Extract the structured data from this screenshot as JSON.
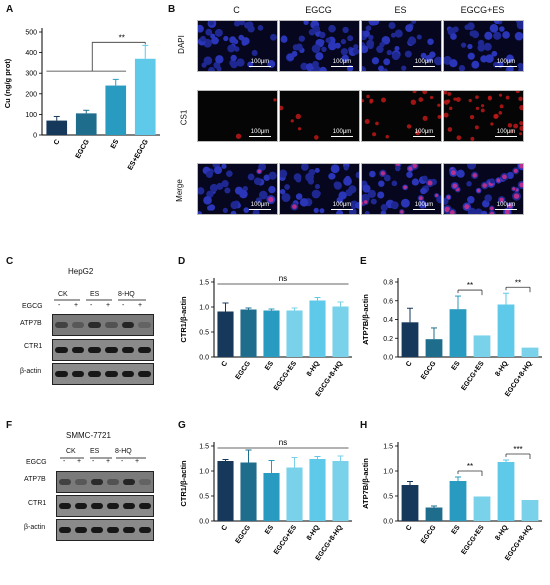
{
  "panel_labels": {
    "A": "A",
    "B": "B",
    "C": "C",
    "D": "D",
    "E": "E",
    "F": "F",
    "G": "G",
    "H": "H"
  },
  "colors": {
    "dark": "#16385a",
    "mid1": "#1f6d8c",
    "mid2": "#2a9bc0",
    "light": "#5ec9e8",
    "lighter": "#79d1ea"
  },
  "micro": {
    "columns": [
      "C",
      "EGCG",
      "ES",
      "EGCG+ES"
    ],
    "rows": [
      "DAPI",
      "CS1",
      "Merge"
    ],
    "scale": "100μm"
  },
  "blots": {
    "hepg2": {
      "title": "HepG2",
      "groups": [
        "CK",
        "ES",
        "8-HQ"
      ],
      "egcg_label": "EGCG",
      "signs": [
        "-",
        "+",
        "-",
        "+",
        "-",
        "+"
      ],
      "rows": [
        "ATP7B",
        "CTR1",
        "β-actin"
      ]
    },
    "smmc": {
      "title": "SMMC-7721",
      "groups": [
        "CK",
        "ES",
        "8-HQ"
      ],
      "egcg_label": "EGCG",
      "signs": [
        "-",
        "+",
        "-",
        "+",
        "-",
        "+"
      ],
      "rows": [
        "ATP7B",
        "CTR1",
        "β-actin"
      ]
    }
  },
  "chart_data": [
    {
      "id": "A",
      "type": "bar",
      "categories": [
        "C",
        "EGCG",
        "ES",
        "ES+EGCG"
      ],
      "values": [
        70,
        105,
        240,
        370
      ],
      "errors": [
        20,
        15,
        30,
        65
      ],
      "ylabel": "Cu (ng/g prot)",
      "ylim": [
        0,
        500
      ],
      "yticks": [
        0,
        100,
        200,
        300,
        400,
        500
      ],
      "annotations": [
        "**"
      ]
    },
    {
      "id": "D",
      "type": "bar",
      "categories": [
        "C",
        "EGCG",
        "ES",
        "EGCG+ES",
        "8-HQ",
        "EGCG+8-HQ"
      ],
      "values": [
        0.91,
        0.95,
        0.93,
        0.93,
        1.13,
        1.01
      ],
      "errors": [
        0.17,
        0.03,
        0.03,
        0.05,
        0.06,
        0.09
      ],
      "ylabel": "CTR1/β-actin",
      "ylim": [
        0,
        1.5
      ],
      "yticks": [
        0.0,
        0.5,
        1.0,
        1.5
      ],
      "annotations": [
        "ns"
      ]
    },
    {
      "id": "E",
      "type": "bar",
      "categories": [
        "C",
        "EGCG",
        "ES",
        "EGCG+ES",
        "8-HQ",
        "EGCG+8-HQ"
      ],
      "values": [
        0.37,
        0.19,
        0.51,
        0.23,
        0.56,
        0.1
      ],
      "errors": [
        0.15,
        0.12,
        0.14,
        0.0,
        0.12,
        0.0
      ],
      "ylabel": "ATP7B/β-actin",
      "ylim": [
        0,
        0.8
      ],
      "yticks": [
        0.0,
        0.2,
        0.4,
        0.6,
        0.8
      ],
      "annotations": [
        "**",
        "**"
      ]
    },
    {
      "id": "G",
      "type": "bar",
      "categories": [
        "C",
        "EGCG",
        "ES",
        "EGCG+ES",
        "8-HQ",
        "EGCG+8-HQ"
      ],
      "values": [
        1.2,
        1.17,
        0.96,
        1.07,
        1.24,
        1.2
      ],
      "errors": [
        0.03,
        0.25,
        0.25,
        0.2,
        0.05,
        0.1
      ],
      "ylabel": "CTR1/β-actin",
      "ylim": [
        0,
        1.5
      ],
      "yticks": [
        0.0,
        0.5,
        1.0,
        1.5
      ],
      "annotations": [
        "ns"
      ]
    },
    {
      "id": "H",
      "type": "bar",
      "categories": [
        "C",
        "EGCG",
        "ES",
        "EGCG+ES",
        "8-HQ",
        "EGCG+8-HQ"
      ],
      "values": [
        0.72,
        0.27,
        0.8,
        0.49,
        1.18,
        0.42
      ],
      "errors": [
        0.07,
        0.03,
        0.08,
        0.0,
        0.04,
        0.0
      ],
      "ylabel": "ATP7B/β-actin",
      "ylim": [
        0,
        1.5
      ],
      "yticks": [
        0.0,
        0.5,
        1.0,
        1.5
      ],
      "annotations": [
        "**",
        "***"
      ]
    }
  ]
}
